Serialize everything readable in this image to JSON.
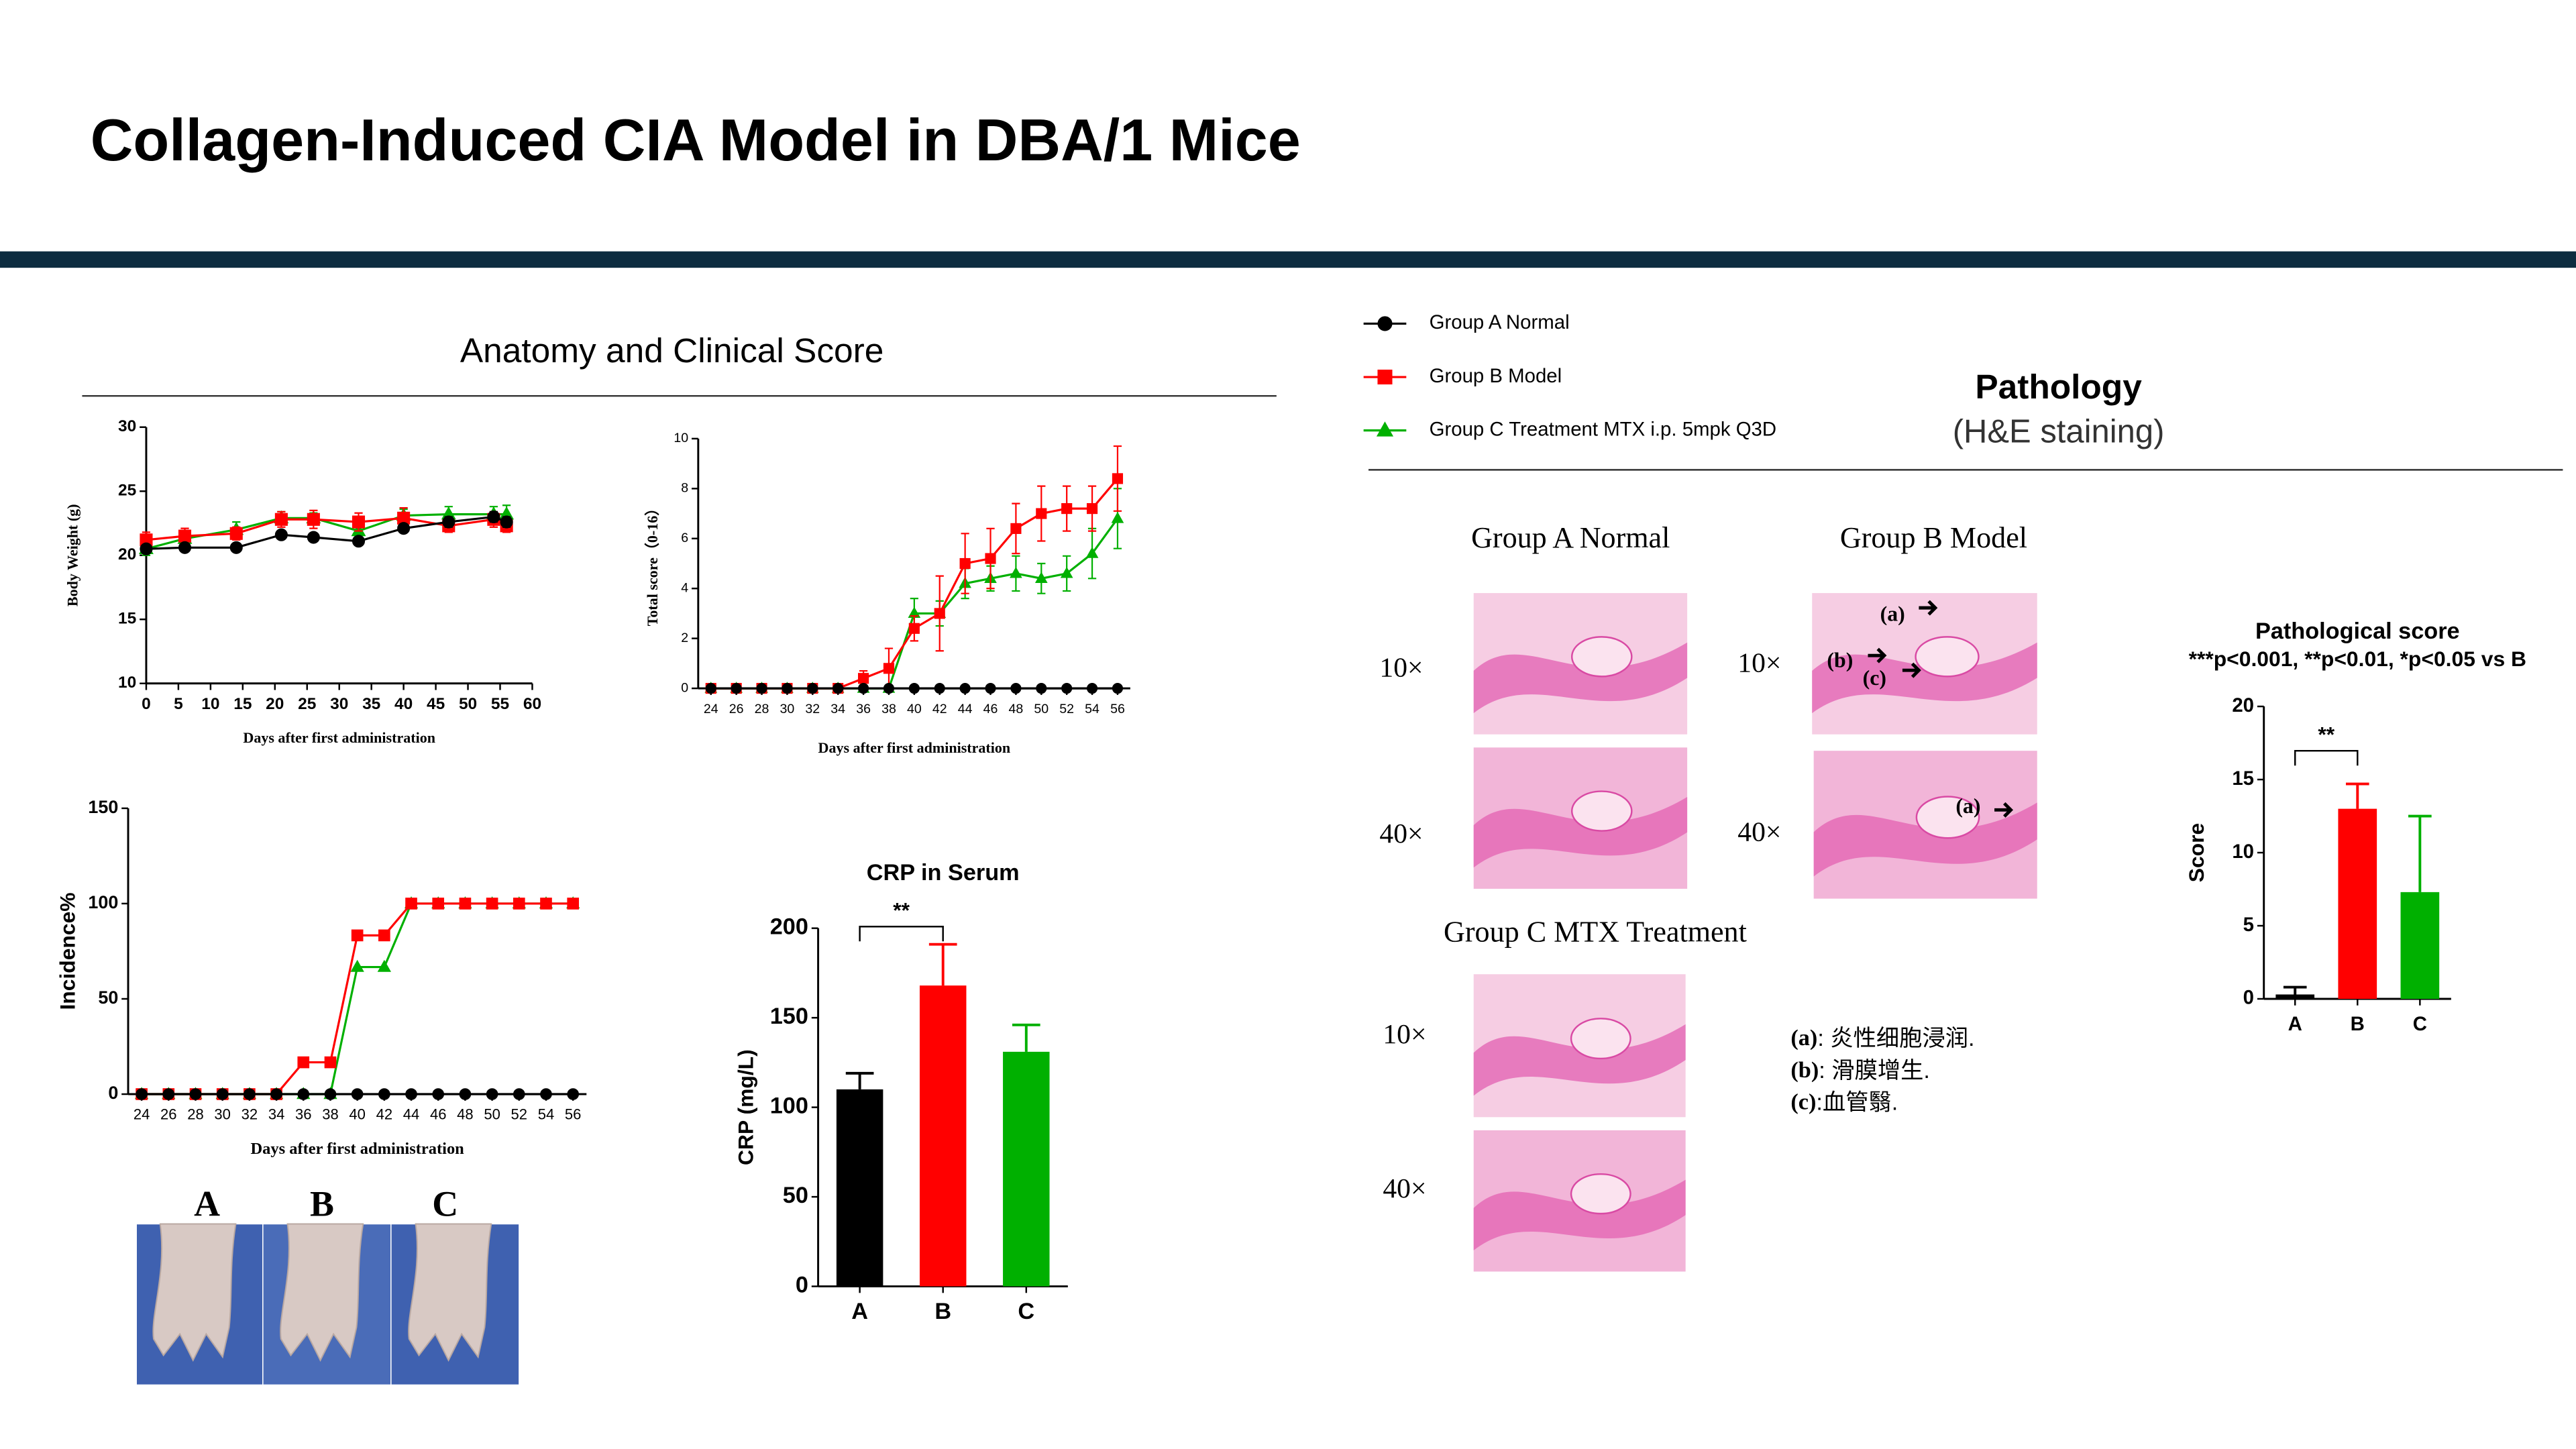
{
  "header": {
    "title": "Collagen-Induced CIA Model in DBA/1 Mice"
  },
  "sections": {
    "anatomy": "Anatomy and Clinical Score",
    "pathology": "Pathology",
    "pathology_subtitle": "(H&E staining)"
  },
  "chart_data": [
    {
      "type": "line",
      "x": [
        0,
        6,
        14,
        21,
        26,
        33,
        40,
        47,
        54,
        56
      ],
      "series": [
        {
          "name": "Group A Normal",
          "color": "#000000",
          "marker": "circle",
          "values": [
            20.5,
            20.6,
            20.6,
            21.6,
            21.4,
            21.1,
            22.1,
            22.6,
            23.0,
            22.6
          ],
          "errors": [
            0.3,
            0.3,
            0.3,
            0.3,
            0.3,
            0.3,
            0.3,
            0.4,
            0.4,
            0.4
          ]
        },
        {
          "name": "Group B Model",
          "color": "#ff0000",
          "marker": "square",
          "values": [
            21.2,
            21.5,
            21.7,
            22.8,
            22.8,
            22.6,
            22.9,
            22.3,
            22.8,
            22.3
          ],
          "errors": [
            0.6,
            0.6,
            0.5,
            0.6,
            0.7,
            0.7,
            0.8,
            0.5,
            0.6,
            0.5
          ]
        },
        {
          "name": "Group C Treatment MTX i.p. 5mpk Q3D",
          "color": "#00b000",
          "marker": "triangle",
          "values": [
            20.5,
            21.3,
            22.0,
            22.9,
            22.9,
            21.9,
            23.1,
            23.2,
            23.2,
            23.2
          ],
          "errors": [
            0.5,
            0.6,
            0.6,
            0.5,
            0.4,
            0.5,
            0.5,
            0.6,
            0.6,
            0.7
          ]
        }
      ],
      "xlim": [
        0,
        60
      ],
      "xticks": [
        0,
        5,
        10,
        15,
        20,
        25,
        30,
        35,
        40,
        45,
        50,
        55,
        60
      ],
      "ylim": [
        10,
        30
      ],
      "yticks": [
        10,
        15,
        20,
        25,
        30
      ],
      "xlabel": "Days after first administration",
      "ylabel": "Body Weight (g)"
    },
    {
      "type": "line",
      "x": [
        24,
        26,
        28,
        30,
        32,
        34,
        36,
        38,
        40,
        42,
        44,
        46,
        48,
        50,
        52,
        54,
        56
      ],
      "series": [
        {
          "color": "#000000",
          "marker": "circle",
          "values": [
            0,
            0,
            0,
            0,
            0,
            0,
            0,
            0,
            0,
            0,
            0,
            0,
            0,
            0,
            0,
            0,
            0
          ],
          "errors": [
            null,
            null,
            null,
            null,
            null,
            null,
            null,
            null,
            null,
            null,
            null,
            null,
            null,
            null,
            null,
            null,
            null
          ]
        },
        {
          "color": "#ff0000",
          "marker": "square",
          "values": [
            0,
            0,
            0,
            0,
            0,
            0,
            0.4,
            0.8,
            2.4,
            3.0,
            5.0,
            5.2,
            6.4,
            7.0,
            7.2,
            7.2,
            8.4
          ],
          "errors": [
            null,
            null,
            null,
            null,
            null,
            null,
            0.3,
            0.8,
            0.5,
            1.5,
            1.2,
            1.2,
            1.0,
            1.1,
            0.9,
            0.9,
            1.3
          ]
        },
        {
          "color": "#00b000",
          "marker": "triangle",
          "values": [
            0,
            0,
            0,
            0,
            0,
            0,
            0,
            0,
            3.0,
            3.0,
            4.2,
            4.4,
            4.6,
            4.4,
            4.6,
            5.4,
            6.8
          ],
          "errors": [
            null,
            null,
            null,
            null,
            null,
            null,
            null,
            null,
            0.6,
            0.5,
            0.6,
            0.5,
            0.7,
            0.6,
            0.7,
            1.0,
            1.2
          ]
        }
      ],
      "xlim": [
        23,
        57
      ],
      "xticks": [
        24,
        26,
        28,
        30,
        32,
        34,
        36,
        38,
        40,
        42,
        44,
        46,
        48,
        50,
        52,
        54,
        56
      ],
      "ylim": [
        0,
        10
      ],
      "yticks": [
        0,
        2,
        4,
        6,
        8,
        10
      ],
      "xlabel": "Days after first administration",
      "ylabel": "Total score（0-16）"
    },
    {
      "type": "line",
      "x": [
        24,
        26,
        28,
        30,
        32,
        34,
        36,
        38,
        40,
        42,
        44,
        46,
        48,
        50,
        52,
        54,
        56
      ],
      "series": [
        {
          "color": "#000000",
          "marker": "circle",
          "values": [
            0,
            0,
            0,
            0,
            0,
            0,
            0,
            0,
            0,
            0,
            0,
            0,
            0,
            0,
            0,
            0,
            0
          ]
        },
        {
          "color": "#ff0000",
          "marker": "square",
          "values": [
            0,
            0,
            0,
            0,
            0,
            0,
            16.7,
            16.7,
            83.3,
            83.3,
            100,
            100,
            100,
            100,
            100,
            100,
            100
          ]
        },
        {
          "color": "#00b000",
          "marker": "triangle",
          "values": [
            0,
            0,
            0,
            0,
            0,
            0,
            0,
            0,
            66.7,
            66.7,
            100,
            100,
            100,
            100,
            100,
            100,
            100
          ]
        }
      ],
      "xlim": [
        23,
        57
      ],
      "xticks": [
        24,
        26,
        28,
        30,
        32,
        34,
        36,
        38,
        40,
        42,
        44,
        46,
        48,
        50,
        52,
        54,
        56
      ],
      "ylim": [
        0,
        150
      ],
      "yticks": [
        0,
        50,
        100,
        150
      ],
      "xlabel": "Days after first administration",
      "ylabel": "Incidence%"
    },
    {
      "type": "bar",
      "title": "CRP in Serum",
      "categories": [
        "A",
        "B",
        "C"
      ],
      "values": [
        110,
        168,
        131
      ],
      "errors": [
        9,
        23,
        15
      ],
      "colors": [
        "#000000",
        "#ff0000",
        "#00b000"
      ],
      "ylim": [
        0,
        200
      ],
      "yticks": [
        0,
        50,
        100,
        150,
        200
      ],
      "ylabel": "CRP (mg/L)",
      "annotation": "**"
    },
    {
      "type": "bar",
      "title": "Pathological score",
      "subtitle": "***p<0.001, **p<0.01, *p<0.05 vs B",
      "categories": [
        "A",
        "B",
        "C"
      ],
      "values": [
        0.3,
        13,
        7.3
      ],
      "errors": [
        0.5,
        1.7,
        5.2
      ],
      "colors": [
        "#000000",
        "#ff0000",
        "#00b000"
      ],
      "ylim": [
        0,
        20
      ],
      "yticks": [
        0,
        5,
        10,
        15,
        20
      ],
      "ylabel": "Score",
      "annotation": "**"
    }
  ],
  "photos": {
    "labels": [
      "A",
      "B",
      "C"
    ]
  },
  "histology": {
    "panels": [
      {
        "group": "Group A Normal",
        "magnifications": [
          "10×",
          "40×"
        ]
      },
      {
        "group": "Group B Model",
        "magnifications": [
          "10×",
          "40×"
        ],
        "markers": [
          "(a)",
          "(b)",
          "(c)",
          "(a)"
        ]
      },
      {
        "group": "Group C MTX Treatment",
        "magnifications": [
          "10×",
          "40×"
        ]
      }
    ],
    "notes": [
      {
        "key": "(a)",
        "text": ": 炎性细胞浸润."
      },
      {
        "key": "(b)",
        "text": ": 滑膜增生."
      },
      {
        "key": "(c)",
        "text": ":血管翳."
      }
    ]
  }
}
